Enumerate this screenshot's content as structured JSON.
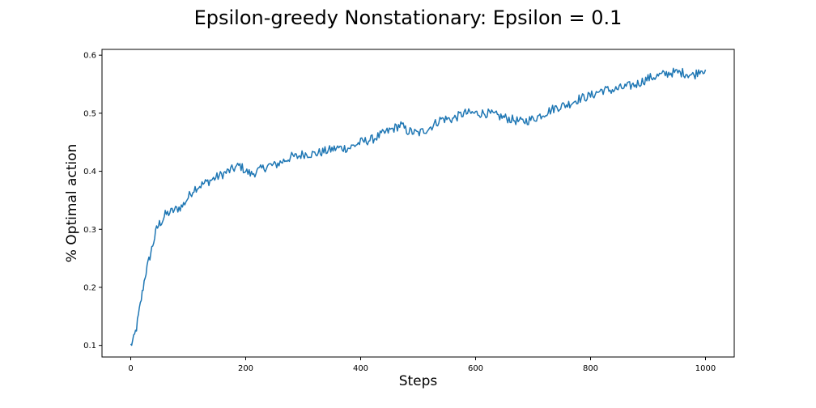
{
  "chart_data": {
    "type": "line",
    "title": "Epsilon-greedy Nonstationary: Epsilon = 0.1",
    "xlabel": "Steps",
    "ylabel": "% Optimal action",
    "xlim": [
      -50,
      1050
    ],
    "ylim": [
      0.08,
      0.61
    ],
    "xticks": [
      0,
      200,
      400,
      600,
      800,
      1000
    ],
    "xtick_labels": [
      "0",
      "200",
      "400",
      "600",
      "800",
      "1000"
    ],
    "yticks": [
      0.1,
      0.2,
      0.3,
      0.4,
      0.5,
      0.6
    ],
    "ytick_labels": [
      "0.1",
      "0.2",
      "0.3",
      "0.4",
      "0.5",
      "0.6"
    ],
    "grid": false,
    "color": "#1f77b4",
    "series": [
      {
        "x": [
          0,
          5,
          10,
          15,
          20,
          25,
          30,
          35,
          40,
          45,
          50,
          55,
          60,
          70,
          80,
          90,
          100,
          110,
          120,
          130,
          140,
          150,
          160,
          170,
          180,
          190,
          200,
          210,
          220,
          230,
          240,
          250,
          260,
          270,
          280,
          290,
          300,
          320,
          340,
          360,
          380,
          400,
          420,
          440,
          460,
          470,
          480,
          500,
          520,
          540,
          560,
          580,
          600,
          620,
          640,
          660,
          680,
          700,
          720,
          740,
          760,
          780,
          800,
          820,
          840,
          860,
          880,
          900,
          920,
          940,
          960,
          980,
          990,
          1000
        ],
        "y": [
          0.1,
          0.11,
          0.13,
          0.16,
          0.19,
          0.22,
          0.24,
          0.26,
          0.28,
          0.3,
          0.31,
          0.315,
          0.325,
          0.33,
          0.335,
          0.34,
          0.355,
          0.37,
          0.375,
          0.38,
          0.385,
          0.39,
          0.395,
          0.4,
          0.405,
          0.41,
          0.4,
          0.395,
          0.4,
          0.405,
          0.41,
          0.41,
          0.415,
          0.42,
          0.425,
          0.425,
          0.43,
          0.43,
          0.435,
          0.44,
          0.44,
          0.45,
          0.455,
          0.465,
          0.475,
          0.48,
          0.47,
          0.465,
          0.475,
          0.49,
          0.49,
          0.5,
          0.5,
          0.5,
          0.495,
          0.49,
          0.485,
          0.49,
          0.5,
          0.51,
          0.515,
          0.525,
          0.53,
          0.54,
          0.54,
          0.545,
          0.55,
          0.56,
          0.565,
          0.57,
          0.57,
          0.565,
          0.575,
          0.575
        ]
      }
    ]
  }
}
